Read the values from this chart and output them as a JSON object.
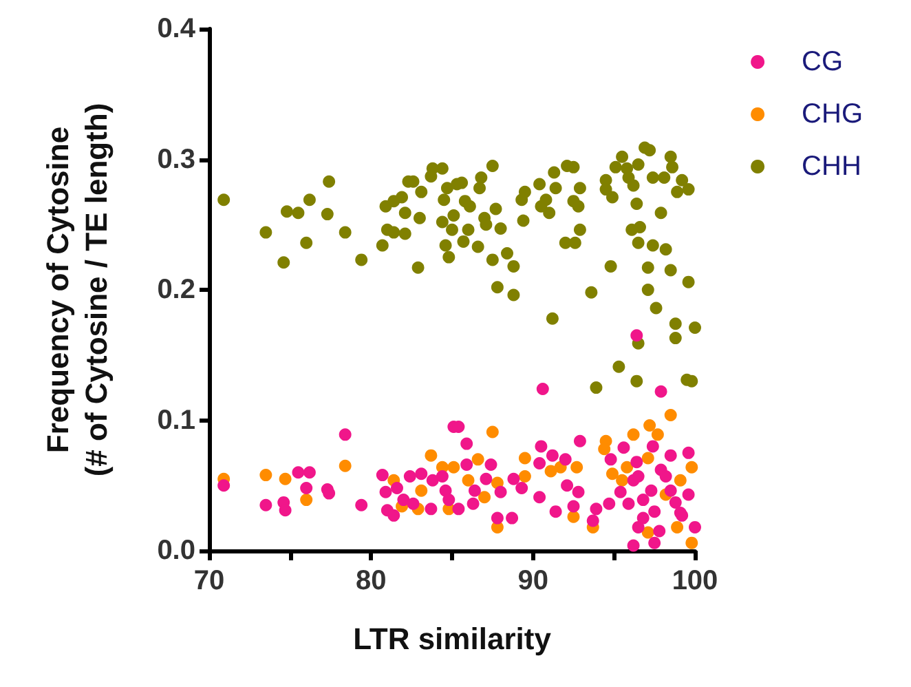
{
  "chart_data": {
    "type": "scatter",
    "xlabel": "LTR similarity",
    "ylabel": "Frequency of Cytosine\n(# of Cytosine / TE length)",
    "xlim": [
      70,
      100
    ],
    "ylim": [
      0,
      0.4
    ],
    "xticks": [
      70,
      {
        "value": 75,
        "label": null
      },
      80,
      {
        "value": 85,
        "label": null
      },
      90,
      {
        "value": 95,
        "label": null
      },
      100
    ],
    "yticks": [
      {
        "value": 0,
        "label": "0.0"
      },
      0.1,
      0.2,
      0.3,
      0.4
    ],
    "grid": false,
    "legend": "top right",
    "marker": "circle",
    "series": [
      {
        "name": "CG",
        "color": "#f0168a",
        "x": [
          70.9,
          73.5,
          74.6,
          74.7,
          75.5,
          76.0,
          76.2,
          77.3,
          77.4,
          78.4,
          79.4,
          80.7,
          80.9,
          81.0,
          81.4,
          81.6,
          82.0,
          82.4,
          82.6,
          83.1,
          83.7,
          83.8,
          84.4,
          84.6,
          85.1,
          96.4,
          90.6,
          97.9,
          85.4,
          85.9,
          90.5,
          92.9,
          95.6,
          97.4,
          99.6,
          98.5,
          91.2,
          92.0,
          94.8,
          85.9,
          87.4,
          90.4,
          96.4,
          88.8,
          89.3,
          88.0,
          87.1,
          86.4,
          90.4,
          91.4,
          92.1,
          92.8,
          92.5,
          93.7,
          93.9,
          94.7,
          95.4,
          95.9,
          96.2,
          96.5,
          96.8,
          97.3,
          97.5,
          97.9,
          98.2,
          98.5,
          98.8,
          99.1,
          99.6,
          96.2,
          97.5,
          97.8,
          100.0,
          96.5,
          84.8,
          85.4,
          86.3,
          87.8,
          88.7,
          96.8,
          99.2
        ],
        "values": [
          0.05,
          0.035,
          0.037,
          0.031,
          0.06,
          0.048,
          0.06,
          0.047,
          0.044,
          0.089,
          0.035,
          0.058,
          0.045,
          0.031,
          0.027,
          0.048,
          0.039,
          0.057,
          0.036,
          0.059,
          0.032,
          0.054,
          0.057,
          0.046,
          0.095,
          0.165,
          0.124,
          0.122,
          0.095,
          0.082,
          0.08,
          0.084,
          0.079,
          0.08,
          0.075,
          0.073,
          0.073,
          0.07,
          0.07,
          0.066,
          0.066,
          0.067,
          0.068,
          0.055,
          0.048,
          0.045,
          0.055,
          0.046,
          0.041,
          0.03,
          0.05,
          0.045,
          0.034,
          0.023,
          0.032,
          0.036,
          0.045,
          0.036,
          0.054,
          0.057,
          0.039,
          0.046,
          0.03,
          0.062,
          0.057,
          0.046,
          0.037,
          0.029,
          0.043,
          0.004,
          0.006,
          0.015,
          0.018,
          0.018,
          0.039,
          0.032,
          0.036,
          0.025,
          0.025,
          0.025,
          0.027
        ]
      },
      {
        "name": "CHG",
        "color": "#ff8c00",
        "x": [
          70.9,
          73.5,
          74.7,
          76.0,
          78.4,
          81.4,
          81.9,
          82.9,
          83.1,
          83.7,
          84.4,
          87.5,
          98.5,
          97.2,
          94.5,
          94.4,
          96.2,
          89.5,
          91.1,
          92.7,
          91.7,
          95.8,
          97.1,
          99.8,
          94.9,
          87.8,
          86.6,
          85.1,
          87.0,
          89.5,
          92.5,
          87.8,
          93.7,
          99.8,
          98.9,
          98.2,
          99.1,
          97.7,
          84.8,
          86.0,
          97.1,
          95.5
        ],
        "values": [
          0.055,
          0.058,
          0.055,
          0.039,
          0.065,
          0.054,
          0.034,
          0.032,
          0.046,
          0.073,
          0.064,
          0.091,
          0.104,
          0.096,
          0.084,
          0.078,
          0.089,
          0.071,
          0.061,
          0.064,
          0.064,
          0.064,
          0.071,
          0.064,
          0.059,
          0.052,
          0.07,
          0.064,
          0.041,
          0.057,
          0.026,
          0.018,
          0.018,
          0.006,
          0.018,
          0.043,
          0.054,
          0.089,
          0.032,
          0.054,
          0.014,
          0.054
        ]
      },
      {
        "name": "CHH",
        "color": "#808000",
        "x": [
          70.9,
          73.5,
          74.6,
          74.8,
          75.5,
          76.0,
          76.2,
          77.3,
          77.4,
          78.4,
          79.4,
          80.7,
          80.9,
          81.0,
          81.4,
          81.9,
          82.1,
          82.3,
          82.6,
          82.9,
          83.0,
          83.1,
          81.4,
          82.1,
          83.7,
          84.4,
          83.8,
          84.5,
          84.7,
          84.4,
          84.6,
          84.8,
          85.0,
          85.1,
          85.3,
          85.6,
          85.7,
          85.8,
          86.0,
          86.1,
          86.6,
          86.7,
          86.8,
          87.0,
          87.1,
          87.5,
          87.5,
          87.7,
          87.8,
          88.0,
          88.4,
          88.8,
          88.8,
          89.3,
          89.4,
          89.5,
          90.4,
          90.5,
          90.8,
          91.0,
          91.2,
          91.3,
          91.4,
          92.0,
          92.1,
          92.5,
          92.5,
          92.6,
          92.8,
          92.9,
          92.9,
          93.6,
          94.5,
          94.5,
          94.8,
          94.9,
          95.1,
          95.5,
          95.8,
          95.9,
          96.1,
          96.2,
          96.4,
          96.5,
          96.5,
          96.5,
          96.6,
          96.9,
          97.2,
          97.1,
          97.1,
          97.4,
          97.4,
          97.6,
          97.9,
          98.1,
          98.2,
          98.5,
          98.5,
          98.6,
          98.8,
          98.8,
          98.9,
          99.2,
          99.6,
          99.6,
          100.0,
          95.3,
          93.9,
          96.4,
          99.5,
          99.8
        ],
        "values": [
          0.269,
          0.244,
          0.221,
          0.26,
          0.259,
          0.236,
          0.269,
          0.258,
          0.283,
          0.244,
          0.223,
          0.234,
          0.264,
          0.246,
          0.268,
          0.271,
          0.259,
          0.283,
          0.283,
          0.217,
          0.255,
          0.275,
          0.244,
          0.243,
          0.287,
          0.293,
          0.293,
          0.269,
          0.278,
          0.252,
          0.234,
          0.225,
          0.246,
          0.257,
          0.281,
          0.282,
          0.237,
          0.268,
          0.246,
          0.264,
          0.233,
          0.278,
          0.286,
          0.255,
          0.25,
          0.295,
          0.223,
          0.262,
          0.202,
          0.247,
          0.228,
          0.218,
          0.196,
          0.269,
          0.253,
          0.275,
          0.281,
          0.264,
          0.269,
          0.259,
          0.178,
          0.29,
          0.278,
          0.236,
          0.295,
          0.294,
          0.268,
          0.236,
          0.264,
          0.246,
          0.278,
          0.198,
          0.284,
          0.277,
          0.218,
          0.271,
          0.294,
          0.302,
          0.293,
          0.286,
          0.246,
          0.28,
          0.266,
          0.236,
          0.159,
          0.296,
          0.248,
          0.309,
          0.307,
          0.2,
          0.217,
          0.286,
          0.234,
          0.186,
          0.259,
          0.286,
          0.231,
          0.215,
          0.302,
          0.294,
          0.174,
          0.163,
          0.275,
          0.284,
          0.277,
          0.206,
          0.171,
          0.141,
          0.125,
          0.13,
          0.131,
          0.13
        ]
      }
    ]
  }
}
